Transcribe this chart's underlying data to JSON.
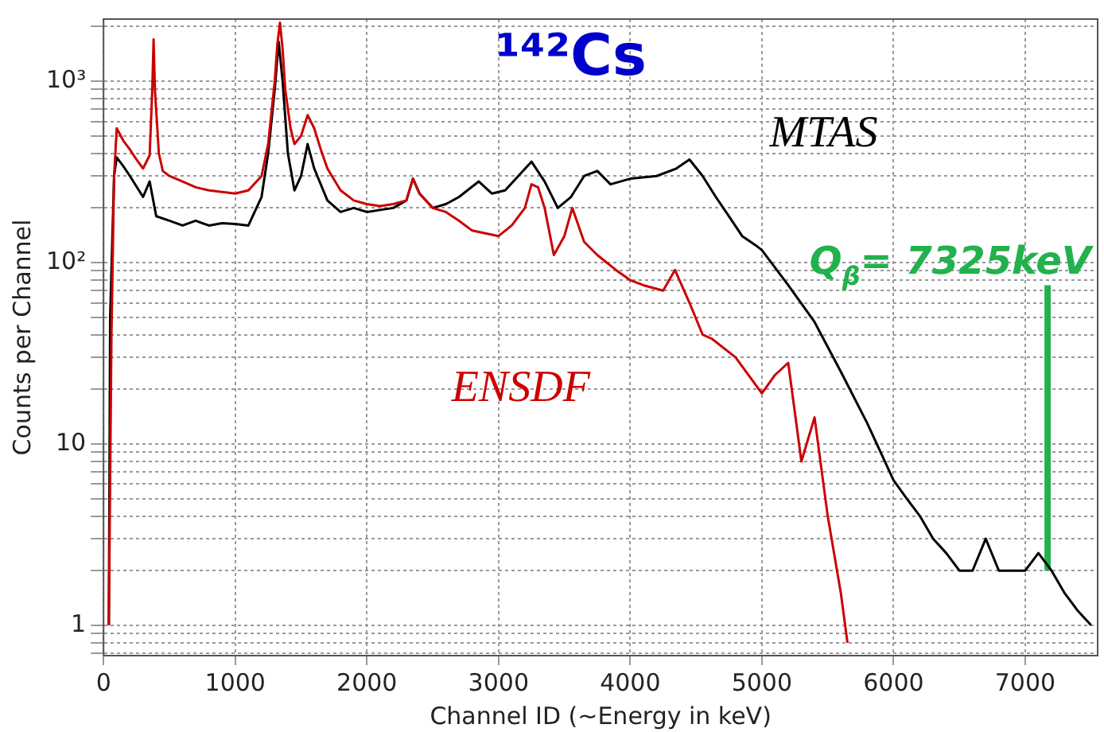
{
  "chart_data": {
    "type": "line",
    "title": "¹⁴²Cs",
    "xlabel": "Channel ID (~Energy in keV)",
    "ylabel": "Counts per Channel",
    "log": "y",
    "grid": true,
    "legend": false,
    "marker": "none",
    "line_style": "solid",
    "xlim": [
      0,
      7550
    ],
    "xticks": [
      0,
      1000,
      2000,
      3000,
      4000,
      5000,
      6000,
      7000
    ],
    "ylim": [
      0.68,
      2200
    ],
    "yticks": [
      {
        "value": 0.7,
        "label": null
      },
      {
        "value": 0.8,
        "label": null
      },
      {
        "value": 0.9,
        "label": null
      },
      1,
      {
        "value": 2,
        "label": null
      },
      {
        "value": 3,
        "label": null
      },
      {
        "value": 4,
        "label": null
      },
      {
        "value": 5,
        "label": null
      },
      {
        "value": 6,
        "label": null
      },
      {
        "value": 7,
        "label": null
      },
      {
        "value": 8,
        "label": null
      },
      {
        "value": 9,
        "label": null
      },
      10,
      {
        "value": 20,
        "label": null
      },
      {
        "value": 30,
        "label": null
      },
      {
        "value": 40,
        "label": null
      },
      {
        "value": 50,
        "label": null
      },
      {
        "value": 60,
        "label": null
      },
      {
        "value": 70,
        "label": null
      },
      {
        "value": 80,
        "label": null
      },
      {
        "value": 90,
        "label": null
      },
      {
        "value": 100,
        "label": "10²"
      },
      {
        "value": 200,
        "label": null
      },
      {
        "value": 300,
        "label": null
      },
      {
        "value": 400,
        "label": null
      },
      {
        "value": 500,
        "label": null
      },
      {
        "value": 600,
        "label": null
      },
      {
        "value": 700,
        "label": null
      },
      {
        "value": 800,
        "label": null
      },
      {
        "value": 900,
        "label": null
      },
      {
        "value": 1000,
        "label": "10³"
      },
      {
        "value": 2000,
        "label": null
      }
    ],
    "annotations": [
      "Q$_{β}$= 7325keV"
    ],
    "series": [
      {
        "name": "ENSDF",
        "color": "#cc0000",
        "x": [
          40,
          60,
          80,
          100,
          150,
          200,
          250,
          300,
          350,
          370,
          380,
          390,
          420,
          450,
          500,
          600,
          700,
          800,
          900,
          1000,
          1100,
          1200,
          1250,
          1300,
          1320,
          1340,
          1360,
          1380,
          1420,
          1450,
          1500,
          1550,
          1600,
          1650,
          1700,
          1800,
          1900,
          2000,
          2100,
          2200,
          2300,
          2350,
          2400,
          2500,
          2600,
          2700,
          2800,
          2900,
          3000,
          3100,
          3200,
          3250,
          3300,
          3350,
          3420,
          3500,
          3560,
          3650,
          3750,
          3900,
          4000,
          4100,
          4250,
          4340,
          4450,
          4550,
          4620,
          4800,
          5000,
          5100,
          5200,
          5250,
          5300,
          5400,
          5500,
          5600,
          5650
        ],
        "values": [
          1,
          40,
          300,
          550,
          470,
          420,
          370,
          330,
          390,
          900,
          1700,
          900,
          400,
          320,
          300,
          280,
          260,
          250,
          245,
          240,
          250,
          300,
          450,
          1000,
          1600,
          2100,
          1500,
          900,
          550,
          450,
          500,
          650,
          550,
          420,
          330,
          250,
          220,
          210,
          205,
          210,
          220,
          290,
          240,
          200,
          190,
          170,
          150,
          145,
          140,
          160,
          200,
          270,
          260,
          200,
          110,
          140,
          200,
          130,
          110,
          90,
          80,
          75,
          70,
          91,
          60,
          40,
          38,
          30,
          19,
          24,
          28,
          15,
          8,
          14,
          4,
          1.5,
          0.8
        ]
      },
      {
        "name": "MTAS",
        "color": "#000000",
        "x": [
          40,
          50,
          80,
          100,
          150,
          200,
          300,
          350,
          400,
          500,
          600,
          700,
          800,
          900,
          1000,
          1100,
          1200,
          1250,
          1300,
          1330,
          1360,
          1400,
          1450,
          1500,
          1550,
          1600,
          1700,
          1800,
          1900,
          2000,
          2100,
          2200,
          2300,
          2350,
          2400,
          2500,
          2600,
          2700,
          2850,
          2950,
          3050,
          3150,
          3250,
          3350,
          3450,
          3550,
          3650,
          3750,
          3850,
          4000,
          4200,
          4350,
          4450,
          4550,
          4650,
          4750,
          4850,
          4950,
          5000,
          5200,
          5400,
          5600,
          5800,
          6000,
          6100,
          6200,
          6300,
          6400,
          6500,
          6600,
          6700,
          6800,
          6900,
          7000,
          7100,
          7200,
          7300,
          7400,
          7500
        ],
        "values": [
          1,
          50,
          300,
          380,
          340,
          300,
          230,
          280,
          180,
          170,
          160,
          170,
          160,
          165,
          163,
          160,
          230,
          400,
          900,
          1650,
          1000,
          400,
          250,
          300,
          450,
          330,
          220,
          190,
          200,
          190,
          195,
          200,
          220,
          290,
          240,
          200,
          210,
          230,
          280,
          240,
          250,
          300,
          360,
          280,
          200,
          230,
          300,
          320,
          270,
          290,
          300,
          330,
          370,
          300,
          230,
          180,
          140,
          125,
          117,
          75,
          47,
          25,
          13,
          6.3,
          5,
          4,
          3,
          2.5,
          2,
          2,
          3,
          2,
          2,
          2,
          2.5,
          2,
          1.5,
          1.2,
          1
        ]
      },
      {
        "color": "#22b14c",
        "x": [
          7170,
          7170
        ],
        "values": [
          2,
          75
        ]
      }
    ]
  }
}
